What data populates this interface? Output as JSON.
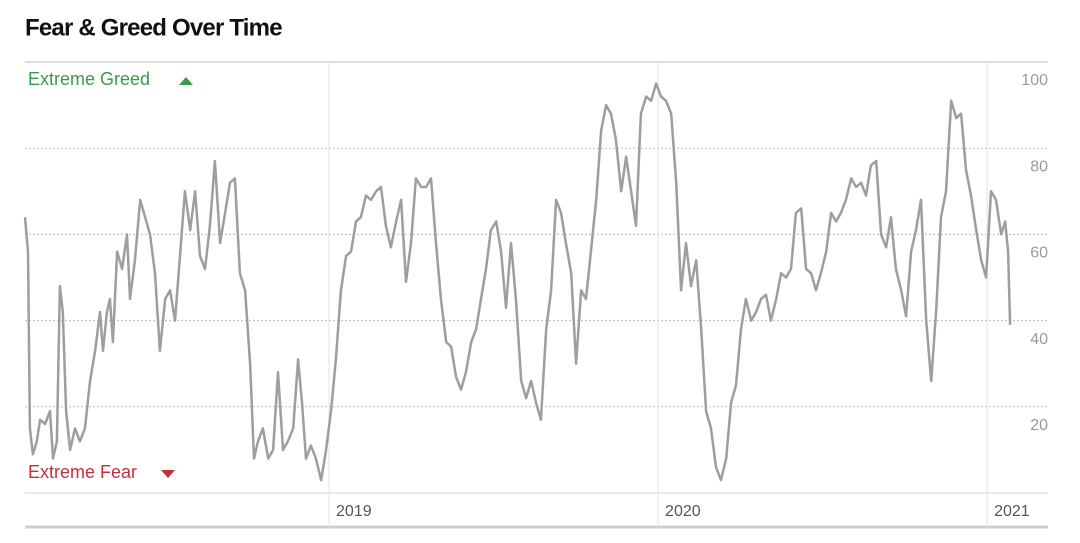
{
  "chart_data": {
    "type": "line",
    "title": "Fear & Greed Over Time",
    "annotations": [
      "Extreme Greed",
      "Extreme Fear"
    ],
    "xlim": [
      2018.076,
      2021.176
    ],
    "xticks": [
      2019,
      2020,
      2021
    ],
    "ylim": [
      0,
      100
    ],
    "yticks": [
      20,
      40,
      60,
      80,
      100
    ],
    "grid": true,
    "series": [
      {
        "color": "#9e9e9e",
        "x": [
          2018.076,
          2018.085,
          2018.091,
          2018.1,
          2018.112,
          2018.122,
          2018.137,
          2018.152,
          2018.161,
          2018.173,
          2018.182,
          2018.191,
          2018.201,
          2018.213,
          2018.228,
          2018.243,
          2018.258,
          2018.274,
          2018.289,
          2018.304,
          2018.313,
          2018.325,
          2018.334,
          2018.343,
          2018.356,
          2018.371,
          2018.386,
          2018.395,
          2018.41,
          2018.426,
          2018.441,
          2018.456,
          2018.471,
          2018.486,
          2018.502,
          2018.517,
          2018.532,
          2018.547,
          2018.562,
          2018.578,
          2018.593,
          2018.608,
          2018.623,
          2018.638,
          2018.653,
          2018.669,
          2018.684,
          2018.699,
          2018.714,
          2018.729,
          2018.745,
          2018.76,
          2018.772,
          2018.784,
          2018.799,
          2018.815,
          2018.83,
          2018.845,
          2018.86,
          2018.875,
          2018.891,
          2018.906,
          2018.918,
          2018.93,
          2018.945,
          2018.96,
          2018.976,
          2018.991,
          2019.006,
          2019.021,
          2019.036,
          2019.052,
          2019.067,
          2019.082,
          2019.097,
          2019.112,
          2019.128,
          2019.143,
          2019.158,
          2019.173,
          2019.188,
          2019.204,
          2019.219,
          2019.234,
          2019.249,
          2019.264,
          2019.28,
          2019.295,
          2019.31,
          2019.325,
          2019.34,
          2019.356,
          2019.371,
          2019.386,
          2019.401,
          2019.416,
          2019.432,
          2019.447,
          2019.462,
          2019.477,
          2019.492,
          2019.508,
          2019.523,
          2019.538,
          2019.553,
          2019.568,
          2019.584,
          2019.599,
          2019.614,
          2019.629,
          2019.644,
          2019.66,
          2019.675,
          2019.69,
          2019.705,
          2019.72,
          2019.736,
          2019.751,
          2019.766,
          2019.781,
          2019.796,
          2019.812,
          2019.827,
          2019.842,
          2019.857,
          2019.872,
          2019.888,
          2019.903,
          2019.918,
          2019.933,
          2019.948,
          2019.964,
          2019.979,
          2019.994,
          2020.009,
          2020.024,
          2020.04,
          2020.055,
          2020.07,
          2020.085,
          2020.1,
          2020.116,
          2020.131,
          2020.146,
          2020.161,
          2020.176,
          2020.191,
          2020.207,
          2020.222,
          2020.237,
          2020.252,
          2020.267,
          2020.283,
          2020.298,
          2020.313,
          2020.328,
          2020.343,
          2020.359,
          2020.374,
          2020.389,
          2020.404,
          2020.419,
          2020.435,
          2020.45,
          2020.465,
          2020.48,
          2020.495,
          2020.511,
          2020.526,
          2020.541,
          2020.556,
          2020.571,
          2020.587,
          2020.602,
          2020.617,
          2020.632,
          2020.647,
          2020.663,
          2020.678,
          2020.693,
          2020.708,
          2020.723,
          2020.739,
          2020.754,
          2020.769,
          2020.784,
          2020.799,
          2020.815,
          2020.83,
          2020.845,
          2020.86,
          2020.875,
          2020.891,
          2020.906,
          2020.921,
          2020.936,
          2020.951,
          2020.967,
          2020.982,
          2020.997,
          2021.012,
          2021.027,
          2021.043,
          2021.055,
          2021.064,
          2021.07
        ],
        "values": [
          64,
          56,
          15,
          9,
          12,
          17,
          16,
          19,
          8,
          12,
          48,
          42,
          19,
          10,
          15,
          12,
          15,
          26,
          33,
          42,
          33,
          42,
          45,
          35,
          56,
          52,
          60,
          45,
          54,
          68,
          64,
          60,
          51,
          33,
          45,
          47,
          40,
          55,
          70,
          61,
          70,
          55,
          52,
          62,
          77,
          58,
          65,
          72,
          73,
          51,
          47,
          30,
          8,
          12,
          15,
          8,
          10,
          28,
          10,
          12,
          15,
          31,
          21,
          8,
          11,
          8,
          3,
          10,
          19,
          31,
          47,
          55,
          56,
          63,
          64,
          69,
          68,
          70,
          71,
          62,
          57,
          63,
          68,
          49,
          58,
          73,
          71,
          71,
          73,
          58,
          45,
          35,
          34,
          27,
          24,
          28,
          35,
          38,
          45,
          52,
          61,
          63,
          56,
          43,
          58,
          45,
          26,
          22,
          26,
          21,
          17,
          38,
          47,
          68,
          65,
          58,
          51,
          30,
          47,
          45,
          56,
          68,
          84,
          90,
          88,
          82,
          70,
          78,
          70,
          62,
          88,
          92,
          91,
          95,
          92,
          91,
          88,
          72,
          47,
          58,
          48,
          54,
          38,
          19,
          15,
          6,
          3,
          8,
          21,
          25,
          38,
          45,
          40,
          42,
          45,
          46,
          40,
          45,
          51,
          50,
          52,
          65,
          66,
          52,
          51,
          47,
          51,
          56,
          65,
          63,
          65,
          68,
          73,
          71,
          72,
          69,
          76,
          77,
          60,
          57,
          64,
          52,
          47,
          41,
          56,
          61,
          68,
          40,
          26,
          42,
          64,
          70,
          91,
          87,
          88,
          75,
          69,
          61,
          54,
          50,
          70,
          68,
          60,
          63,
          56,
          39
        ]
      }
    ]
  }
}
